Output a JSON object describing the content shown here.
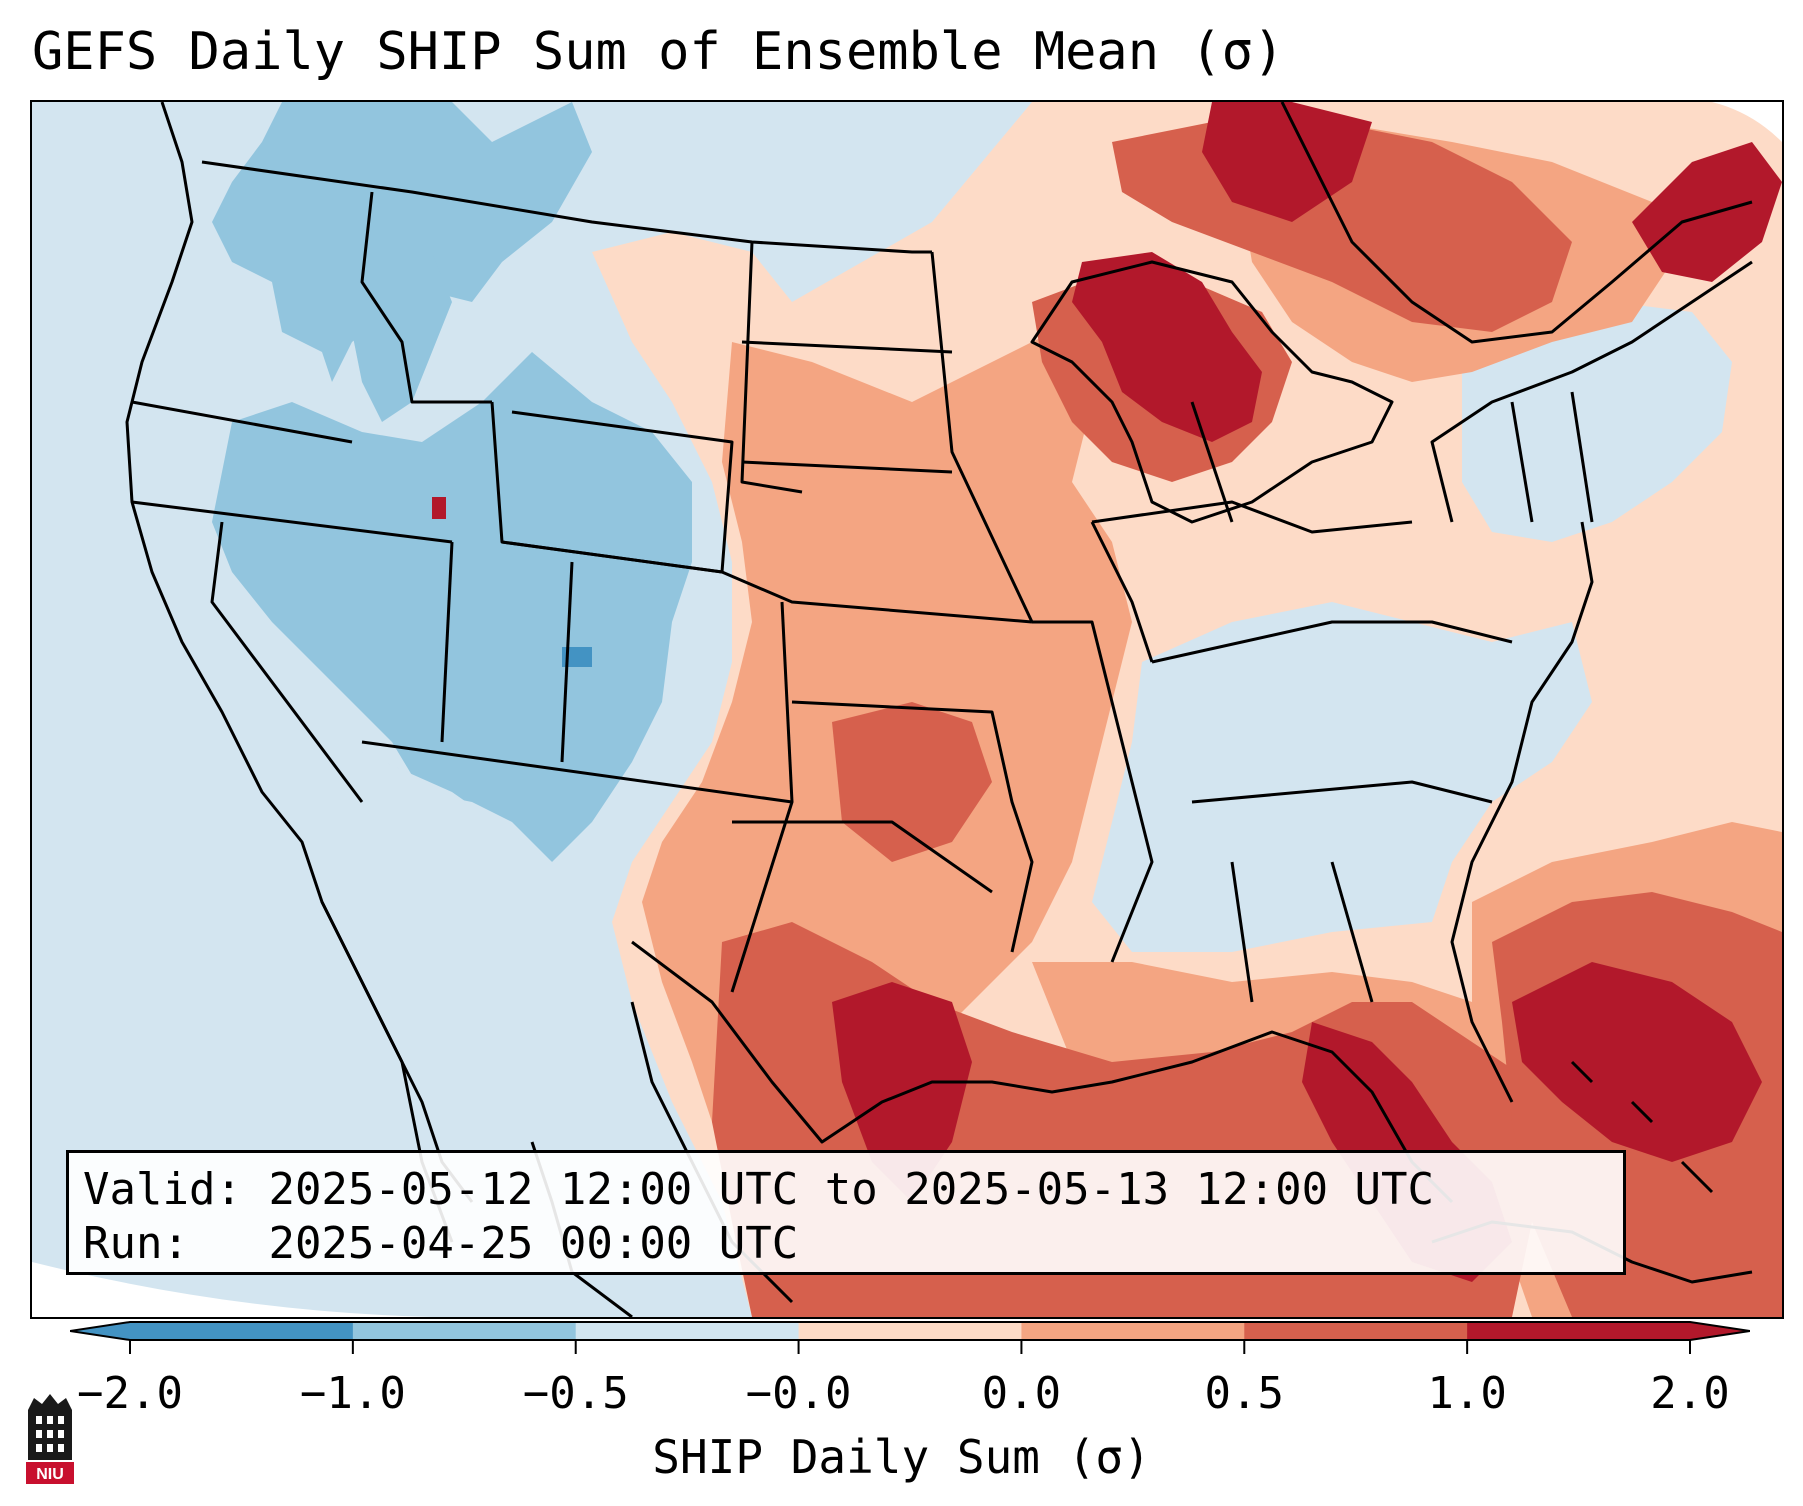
{
  "title": "GEFS Daily SHIP Sum of Ensemble Mean (σ)",
  "info": {
    "valid_label": "Valid:",
    "valid_value": "2025-05-12 12:00 UTC to 2025-05-13 12:00 UTC",
    "run_label": "Run:",
    "run_value": "2025-04-25 00:00 UTC"
  },
  "colorbar": {
    "label": "SHIP Daily Sum (σ)",
    "ticks": [
      "−2.0",
      "−1.0",
      "−0.5",
      "−0.0",
      "0.0",
      "0.5",
      "1.0",
      "2.0"
    ],
    "colors": [
      "#4393c3",
      "#92c5de",
      "#d1e5f0",
      "#fddbc7",
      "#f4a582",
      "#d6604d",
      "#b2182b"
    ],
    "extend": "both"
  },
  "map": {
    "region": "Contiguous United States",
    "colors": {
      "strong_negative": "#4393c3",
      "moderate_negative": "#92c5de",
      "weak_negative": "#d1e5f0",
      "weak_positive": "#fddbc7",
      "moderate_positive": "#f4a582",
      "strong_positive": "#d6604d",
      "very_strong_positive": "#b2182b"
    }
  },
  "logo": {
    "text": "NIU"
  }
}
